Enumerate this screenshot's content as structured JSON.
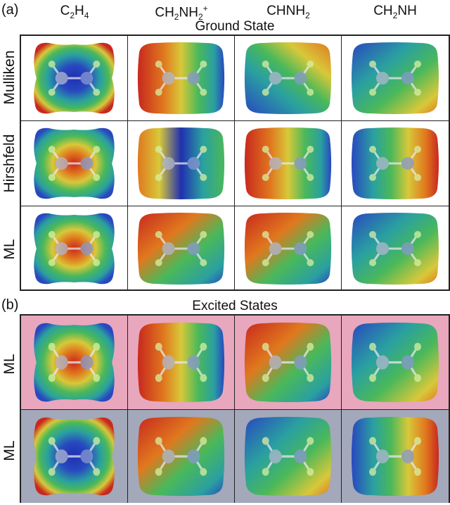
{
  "panel_a": {
    "label": "(a)",
    "section_title": "Ground State",
    "columns": [
      {
        "main": "C",
        "parts": [
          [
            "sub",
            "2"
          ],
          [
            "text",
            "H"
          ],
          [
            "sub",
            "4"
          ]
        ]
      },
      {
        "main": "CH",
        "parts": [
          [
            "sub",
            "2"
          ],
          [
            "text",
            "NH"
          ],
          [
            "sub",
            "2"
          ],
          [
            "sup",
            "+"
          ]
        ]
      },
      {
        "main": "CHNH",
        "parts": [
          [
            "sub",
            "2"
          ]
        ]
      },
      {
        "main": "CH",
        "parts": [
          [
            "sub",
            "2"
          ],
          [
            "text",
            "NH"
          ]
        ]
      }
    ],
    "row_labels": [
      "Mulliken",
      "Hirshfeld",
      "ML"
    ]
  },
  "panel_b": {
    "label": "(b)",
    "section_title": "Excited States",
    "row_labels": [
      "ML",
      "ML"
    ],
    "row_backgrounds": [
      "#e8a7bd",
      "#a3a8ba"
    ]
  },
  "surface_colors": {
    "negative": "#2222cc",
    "neutral": "#44bb66",
    "positive": "#cc2222"
  }
}
